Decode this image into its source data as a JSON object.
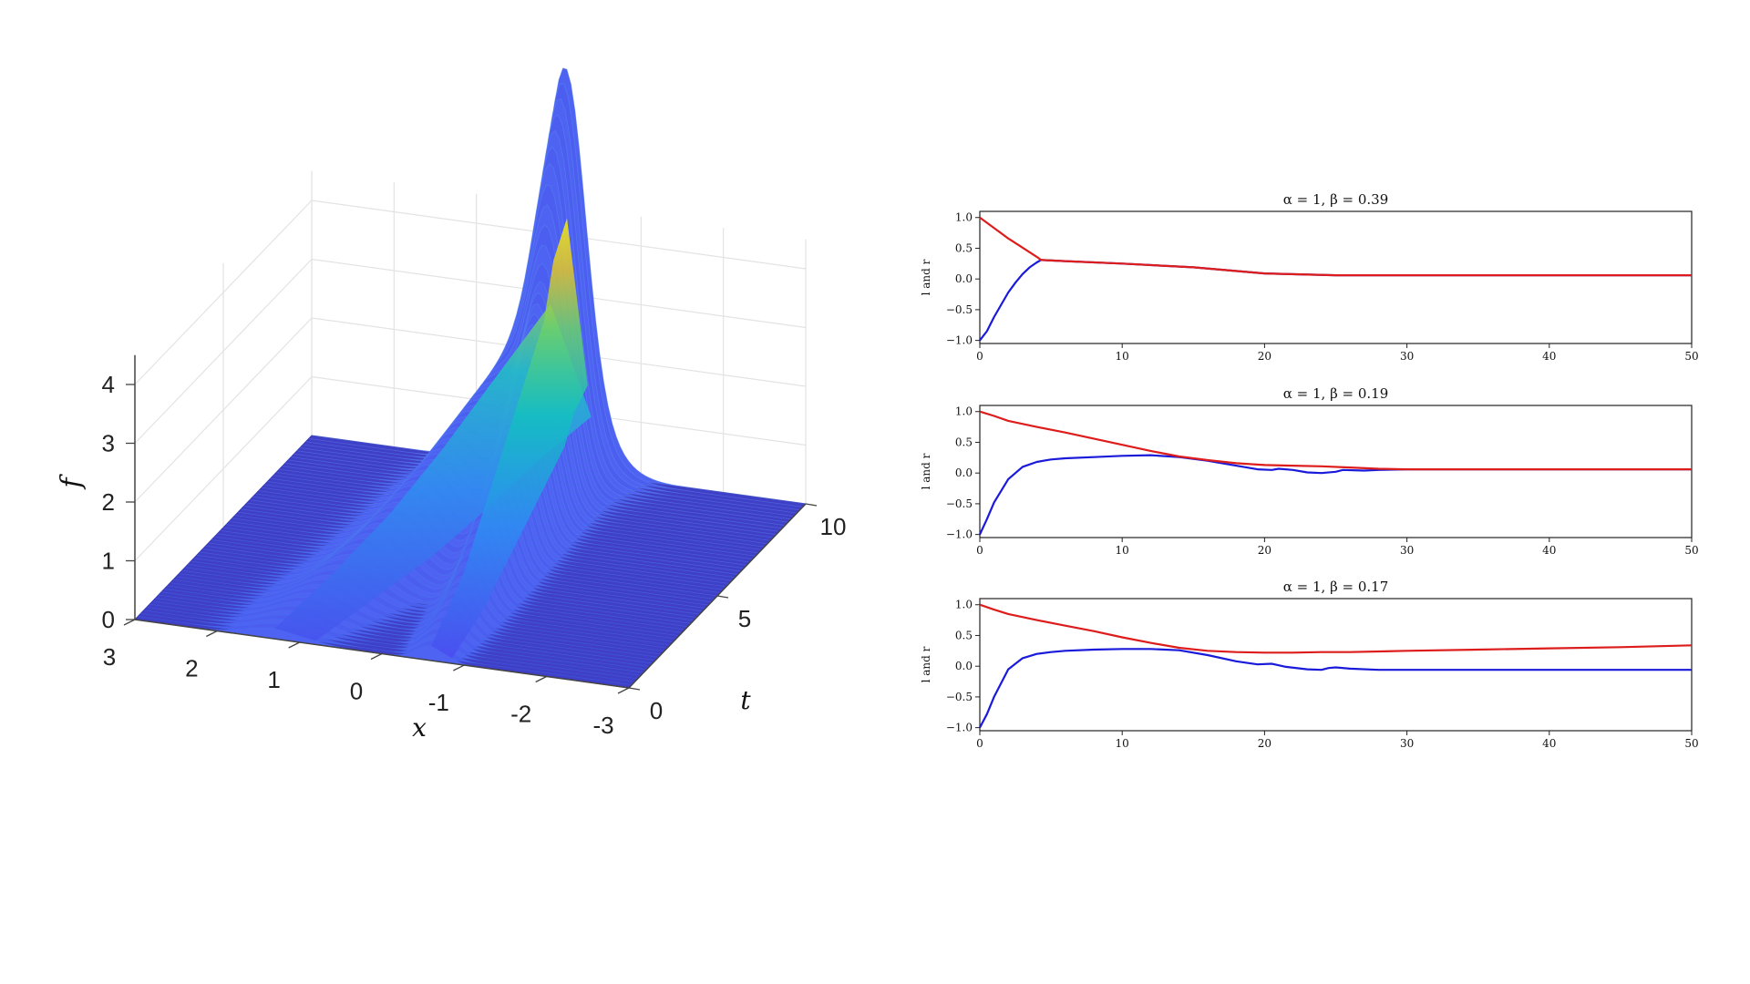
{
  "surface_plot": {
    "x_axis_label": "x",
    "t_axis_label": "t",
    "z_axis_label": "f",
    "colormap": [
      "#3e26a8",
      "#4a4cf0",
      "#2c8ef2",
      "#12b8c8",
      "#3fcf8e",
      "#bdc12f",
      "#fbd12a",
      "#f9fb0e"
    ],
    "base_color": "#3f3fc7"
  },
  "chart_data": [
    {
      "type": "surface",
      "title": "",
      "xlabel": "x",
      "ylabel": "t",
      "zlabel": "f",
      "x_ticks": [
        "3",
        "2",
        "1",
        "0",
        "-1",
        "-2",
        "-3"
      ],
      "t_ticks": [
        "0",
        "5",
        "10"
      ],
      "z_ticks": [
        "0",
        "1",
        "2",
        "3",
        "4"
      ],
      "xlim": [
        -3,
        3
      ],
      "tlim": [
        0,
        10
      ],
      "zlim": [
        0,
        4.5
      ],
      "grid": true,
      "ridges": [
        {
          "name": "",
          "x_path": [
            1.3,
            1.05,
            0.75,
            0.55,
            0.4,
            0.25,
            0.1
          ],
          "t": [
            0,
            2,
            4,
            6,
            8,
            9,
            10
          ],
          "peak_f": [
            0.18,
            0.5,
            1.0,
            1.5,
            2.0,
            2.4,
            2.8
          ]
        },
        {
          "name": "",
          "x_path": [
            -0.6,
            -0.55,
            -0.45,
            -0.35,
            -0.25,
            -0.15,
            -0.1
          ],
          "t": [
            0,
            2,
            4,
            6,
            8,
            9,
            10
          ],
          "peak_f": [
            0.25,
            0.8,
            1.6,
            2.4,
            3.2,
            3.9,
            4.3
          ]
        }
      ]
    },
    {
      "type": "line",
      "title": "α = 1, β = 0.39",
      "xlabel": "",
      "ylabel": "l and r",
      "xlim": [
        0,
        50
      ],
      "ylim": [
        -1.05,
        1.1
      ],
      "x_ticks": [
        "0",
        "10",
        "20",
        "30",
        "40",
        "50"
      ],
      "y_ticks": [
        "1.0",
        "0.5",
        "0.0",
        "−0.5",
        "−1.0"
      ],
      "series": [
        {
          "color": "#1a1adb",
          "x": [
            0,
            0.5,
            1,
            1.5,
            2,
            2.5,
            3,
            3.5,
            4,
            4.3,
            6,
            10,
            15,
            20,
            25,
            30,
            40,
            50
          ],
          "y": [
            -1.0,
            -0.85,
            -0.62,
            -0.42,
            -0.22,
            -0.06,
            0.08,
            0.19,
            0.27,
            0.31,
            0.29,
            0.25,
            0.19,
            0.09,
            0.06,
            0.06,
            0.06,
            0.06
          ]
        },
        {
          "color": "#dd1c1c",
          "x": [
            0,
            1,
            2,
            3,
            4,
            4.3,
            6,
            10,
            15,
            20,
            25,
            30,
            40,
            50
          ],
          "y": [
            1.0,
            0.83,
            0.66,
            0.51,
            0.36,
            0.31,
            0.29,
            0.25,
            0.19,
            0.09,
            0.06,
            0.06,
            0.06,
            0.06
          ]
        }
      ]
    },
    {
      "type": "line",
      "title": "α = 1, β = 0.19",
      "xlabel": "",
      "ylabel": "l and r",
      "xlim": [
        0,
        50
      ],
      "ylim": [
        -1.05,
        1.1
      ],
      "x_ticks": [
        "0",
        "10",
        "20",
        "30",
        "40",
        "50"
      ],
      "y_ticks": [
        "1.0",
        "0.5",
        "0.0",
        "−0.5",
        "−1.0"
      ],
      "series": [
        {
          "color": "#1a1adb",
          "x": [
            0,
            0.5,
            1,
            2,
            3,
            4,
            5,
            6,
            8,
            10,
            12,
            14,
            16,
            18,
            19.5,
            20.5,
            21,
            22,
            23,
            24,
            25,
            25.5,
            27,
            28,
            30,
            40,
            50
          ],
          "y": [
            -1.0,
            -0.75,
            -0.48,
            -0.1,
            0.1,
            0.18,
            0.22,
            0.24,
            0.26,
            0.28,
            0.29,
            0.26,
            0.2,
            0.12,
            0.06,
            0.05,
            0.07,
            0.05,
            0.01,
            0.0,
            0.02,
            0.05,
            0.04,
            0.05,
            0.06,
            0.06,
            0.06
          ]
        },
        {
          "color": "#dd1c1c",
          "x": [
            0,
            1,
            2,
            4,
            6,
            8,
            10,
            12,
            14,
            16,
            18,
            20,
            22,
            24,
            26,
            28,
            30,
            40,
            50
          ],
          "y": [
            1.0,
            0.93,
            0.85,
            0.75,
            0.66,
            0.56,
            0.46,
            0.36,
            0.27,
            0.21,
            0.16,
            0.13,
            0.12,
            0.11,
            0.09,
            0.07,
            0.06,
            0.06,
            0.06
          ]
        }
      ]
    },
    {
      "type": "line",
      "title": "α = 1, β = 0.17",
      "xlabel": "",
      "ylabel": "l and r",
      "xlim": [
        0,
        50
      ],
      "ylim": [
        -1.05,
        1.1
      ],
      "x_ticks": [
        "0",
        "10",
        "20",
        "30",
        "40",
        "50"
      ],
      "y_ticks": [
        "1.0",
        "0.5",
        "0.0",
        "−0.5",
        "−1.0"
      ],
      "series": [
        {
          "color": "#1a1adb",
          "x": [
            0,
            0.5,
            1,
            2,
            3,
            4,
            5,
            6,
            8,
            10,
            12,
            14,
            16,
            18,
            19.5,
            20.5,
            21.5,
            23,
            24,
            24.5,
            25,
            26,
            28,
            30,
            40,
            50
          ],
          "y": [
            -1.0,
            -0.78,
            -0.5,
            -0.05,
            0.13,
            0.2,
            0.23,
            0.25,
            0.27,
            0.28,
            0.28,
            0.26,
            0.18,
            0.08,
            0.03,
            0.04,
            -0.01,
            -0.05,
            -0.06,
            -0.03,
            -0.02,
            -0.04,
            -0.06,
            -0.06,
            -0.06,
            -0.06
          ]
        },
        {
          "color": "#dd1c1c",
          "x": [
            0,
            1,
            2,
            4,
            6,
            8,
            10,
            12,
            14,
            16,
            18,
            20,
            22,
            24,
            26,
            30,
            35,
            40,
            45,
            50
          ],
          "y": [
            1.0,
            0.92,
            0.85,
            0.75,
            0.66,
            0.57,
            0.47,
            0.38,
            0.3,
            0.25,
            0.23,
            0.22,
            0.22,
            0.23,
            0.23,
            0.25,
            0.27,
            0.29,
            0.31,
            0.34
          ]
        }
      ]
    }
  ]
}
